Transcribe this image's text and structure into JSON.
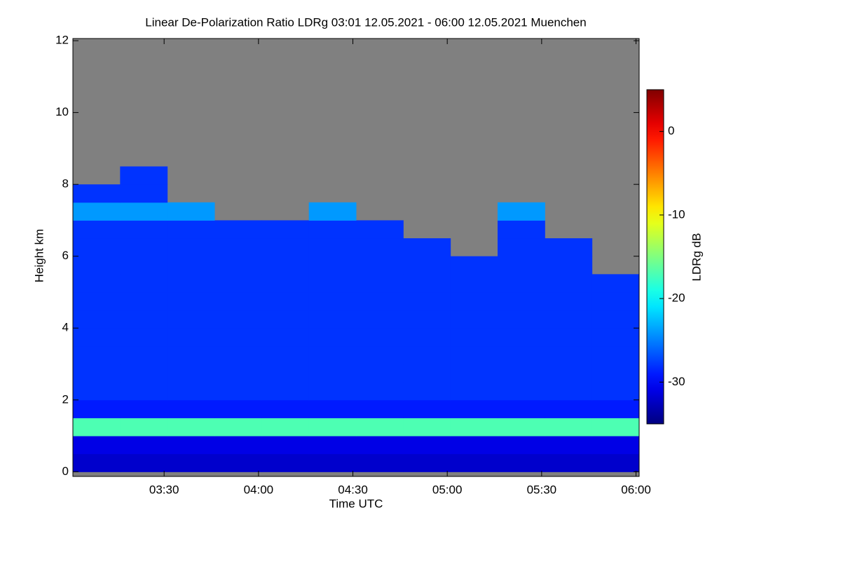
{
  "chart_data": {
    "type": "heatmap",
    "title": "Linear De-Polarization Ratio LDRg   03:01 12.05.2021 - 06:00 12.05.2021 Muenchen",
    "x_label": "Time UTC",
    "y_label": "Height km",
    "colorbar_label": "LDRg dB",
    "colormap": "jet",
    "null_color": "#808080",
    "xlim": [
      181,
      361
    ],
    "xticks": [
      {
        "value": 210,
        "label": "03:30"
      },
      {
        "value": 240,
        "label": "04:00"
      },
      {
        "value": 270,
        "label": "04:30"
      },
      {
        "value": 300,
        "label": "05:00"
      },
      {
        "value": 330,
        "label": "05:30"
      },
      {
        "value": 360,
        "label": "06:00"
      }
    ],
    "ylim": [
      -0.13,
      12.06
    ],
    "yticks": [
      0,
      2,
      4,
      6,
      8,
      10,
      12
    ],
    "zlim": [
      -35,
      5
    ],
    "zticks": [
      0,
      -10,
      -20,
      -30
    ],
    "xbins": [
      181,
      196,
      211,
      226,
      241,
      256,
      271,
      286,
      301,
      316,
      331,
      346,
      361
    ],
    "ybins": [
      0,
      0.5,
      1,
      1.5,
      2,
      2.5,
      3,
      3.5,
      4,
      4.5,
      5,
      5.5,
      6,
      6.5,
      7,
      7.5,
      8,
      8.5
    ],
    "z": [
      [
        -32,
        -32,
        -32,
        -32,
        -32,
        -32,
        -32,
        -32,
        -32,
        -32,
        -32,
        -32
      ],
      [
        -31,
        -31,
        -31,
        -31,
        -31,
        -31,
        -31,
        -31,
        -31,
        -31,
        -31,
        -31
      ],
      [
        -17,
        -17,
        -17,
        -17,
        -17,
        -17,
        -17,
        -17,
        -17,
        -17,
        -17,
        -17
      ],
      [
        -29,
        -29,
        -29,
        -29,
        -29,
        -29,
        -29,
        -29,
        -29,
        -29,
        -29,
        -29
      ],
      [
        -28,
        -28,
        -28,
        -28,
        -28,
        -28,
        -28,
        -28,
        -28,
        -28,
        -28,
        -28
      ],
      [
        -28,
        -28,
        -28,
        -28,
        -28,
        -28,
        -28,
        -28,
        -28,
        -28,
        -28,
        -28
      ],
      [
        -28,
        -28,
        -28,
        -28,
        -28,
        -28,
        -28,
        -28,
        -28,
        -28,
        -28,
        -28
      ],
      [
        -28,
        -28,
        -28,
        -28,
        -28,
        -28,
        -28,
        -28,
        -28,
        -28,
        -28,
        -28
      ],
      [
        -28,
        -28,
        -28,
        -28,
        -28,
        -28,
        -28,
        -28,
        -28,
        -28,
        -28,
        -28
      ],
      [
        -28,
        -28,
        -28,
        -28,
        -28,
        -28,
        -28,
        -28,
        -28,
        -28,
        -28,
        -28
      ],
      [
        -28,
        -28,
        -28,
        -28,
        -28,
        -28,
        -28,
        -28,
        -28,
        -28,
        -28,
        -28
      ],
      [
        -28,
        -28,
        -28,
        -28,
        -28,
        -28,
        -28,
        -28,
        -28,
        -28,
        -28,
        null
      ],
      [
        -28,
        -28,
        -28,
        -28,
        -28,
        -28,
        -28,
        -28,
        null,
        -28,
        -28,
        null
      ],
      [
        -28,
        -28,
        -28,
        -28,
        -28,
        -28,
        -28,
        null,
        null,
        -28,
        null,
        null
      ],
      [
        -24,
        -24,
        -24,
        null,
        null,
        -24,
        null,
        null,
        null,
        -24,
        null,
        null
      ],
      [
        -28,
        -28,
        null,
        null,
        null,
        null,
        null,
        null,
        null,
        null,
        null,
        null
      ],
      [
        null,
        -28,
        null,
        null,
        null,
        null,
        null,
        null,
        null,
        null,
        null,
        null
      ]
    ]
  }
}
